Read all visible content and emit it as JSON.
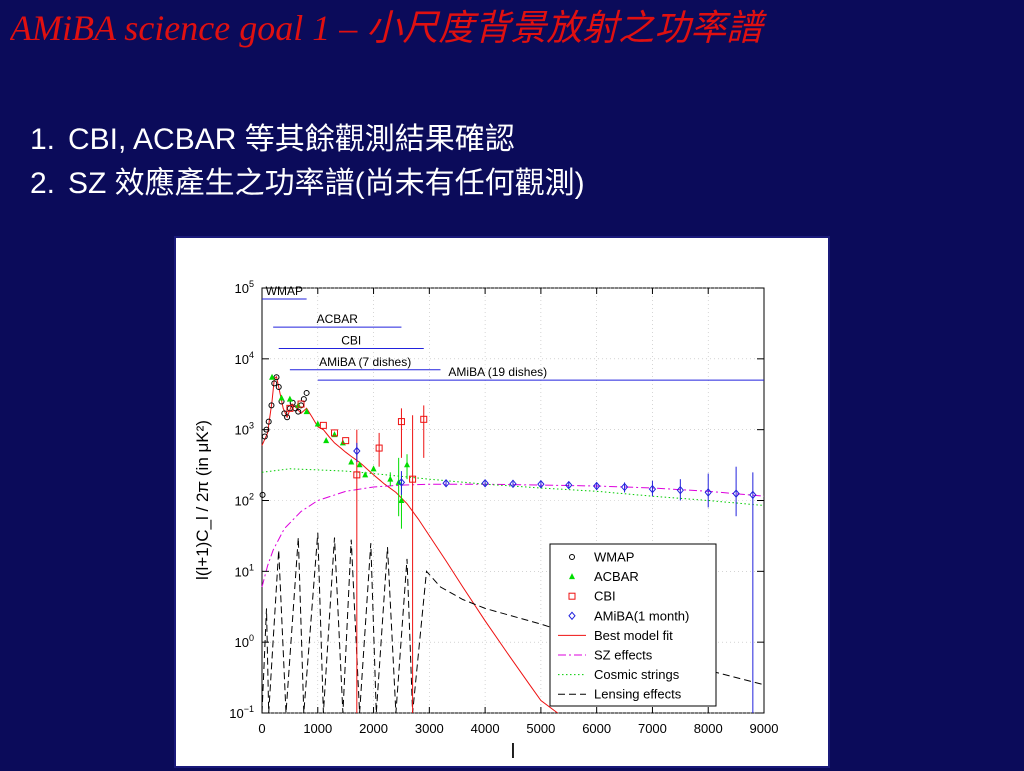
{
  "slide": {
    "title": "AMiBA science goal 1 – 小尺度背景放射之功率譜",
    "bullets": [
      {
        "num": "1.",
        "label": "CBI, ACBAR 等其餘觀測結果確認"
      },
      {
        "num": "2.",
        "label": "SZ 效應產生之功率譜(尚未有任何觀測)"
      }
    ]
  },
  "colors": {
    "background": "#0b0b5a",
    "title": "#e01010",
    "wmap": "#000000",
    "acbar": "#00dd00",
    "cbi": "#ee1111",
    "amiba": "#2222dd",
    "best_fit": "#ee1111",
    "sz": "#dd00dd",
    "strings": "#00cc00",
    "lensing": "#000000"
  },
  "chart_data": {
    "type": "line",
    "xlabel": "l",
    "ylabel": "l(l+1)C_l / 2π (in μK²)",
    "xlim": [
      0,
      9000
    ],
    "ylim": [
      0.1,
      100000
    ],
    "yscale": "log",
    "x_ticks": [
      "0",
      "1000",
      "2000",
      "3000",
      "4000",
      "5000",
      "6000",
      "7000",
      "8000",
      "9000"
    ],
    "y_ticks": [
      {
        "value": 0.1,
        "base": "10",
        "exp": "−1"
      },
      {
        "value": 1,
        "base": "10",
        "exp": "0"
      },
      {
        "value": 10,
        "base": "10",
        "exp": "1"
      },
      {
        "value": 100,
        "base": "10",
        "exp": "2"
      },
      {
        "value": 1000,
        "base": "10",
        "exp": "3"
      },
      {
        "value": 10000,
        "base": "10",
        "exp": "4"
      },
      {
        "value": 100000,
        "base": "10",
        "exp": "5"
      }
    ],
    "legend_position": "lower-right",
    "coverage": [
      {
        "name": "WMAP",
        "l_min": 0,
        "l_max": 800,
        "y": 70000
      },
      {
        "name": "ACBAR",
        "l_min": 200,
        "l_max": 2500,
        "y": 28000
      },
      {
        "name": "CBI",
        "l_min": 300,
        "l_max": 2900,
        "y": 14000
      },
      {
        "name": "AMiBA (7 dishes)",
        "l_min": 500,
        "l_max": 3200,
        "y": 7000
      },
      {
        "name": "AMiBA (19 dishes)",
        "l_min": 1000,
        "l_max": 9000,
        "y": 5000
      }
    ],
    "legend": [
      {
        "key": "wmap",
        "label": "WMAP",
        "style": "circle"
      },
      {
        "key": "acbar",
        "label": "ACBAR",
        "style": "triangle"
      },
      {
        "key": "cbi",
        "label": "CBI",
        "style": "square"
      },
      {
        "key": "amiba",
        "label": "AMiBA(1 month)",
        "style": "diamond"
      },
      {
        "key": "best_fit",
        "label": "Best model fit",
        "style": "solid"
      },
      {
        "key": "sz",
        "label": "SZ effects",
        "style": "dashdot"
      },
      {
        "key": "strings",
        "label": "Cosmic strings",
        "style": "dotted"
      },
      {
        "key": "lensing",
        "label": "Lensing effects",
        "style": "dashed"
      }
    ],
    "series": [
      {
        "name": "WMAP",
        "key": "wmap",
        "marker": "circle",
        "points": [
          [
            10,
            120
          ],
          [
            50,
            800
          ],
          [
            80,
            1000
          ],
          [
            120,
            1300
          ],
          [
            170,
            2200
          ],
          [
            220,
            4500
          ],
          [
            260,
            5500
          ],
          [
            300,
            4000
          ],
          [
            350,
            2500
          ],
          [
            400,
            1700
          ],
          [
            450,
            1500
          ],
          [
            500,
            2000
          ],
          [
            550,
            2400
          ],
          [
            600,
            2000
          ],
          [
            650,
            1800
          ],
          [
            700,
            2200
          ],
          [
            750,
            2700
          ],
          [
            800,
            3300
          ]
        ]
      },
      {
        "name": "ACBAR",
        "key": "acbar",
        "marker": "triangle",
        "points": [
          [
            180,
            5500
          ],
          [
            350,
            2800
          ],
          [
            500,
            2700
          ],
          [
            650,
            2200
          ],
          [
            800,
            1800
          ],
          [
            1000,
            1200
          ],
          [
            1150,
            700
          ],
          [
            1300,
            850
          ],
          [
            1450,
            650
          ],
          [
            1600,
            350
          ],
          [
            1750,
            320
          ],
          [
            1850,
            230
          ],
          [
            2000,
            280
          ],
          [
            2300,
            200
          ],
          [
            2450,
            180
          ],
          [
            2500,
            100
          ],
          [
            2600,
            320
          ]
        ],
        "errors": [
          [
            2300,
            160,
            250
          ],
          [
            2450,
            60,
            400
          ],
          [
            2500,
            40,
            220
          ],
          [
            2600,
            200,
            450
          ]
        ]
      },
      {
        "name": "CBI",
        "key": "cbi",
        "marker": "square",
        "points": [
          [
            500,
            2000
          ],
          [
            700,
            2300
          ],
          [
            1100,
            1150
          ],
          [
            1300,
            900
          ],
          [
            1500,
            700
          ],
          [
            1700,
            230
          ],
          [
            2100,
            550
          ],
          [
            2500,
            1300
          ],
          [
            2700,
            200
          ],
          [
            2900,
            1400
          ]
        ],
        "errors": [
          [
            1700,
            0.1,
            1000
          ],
          [
            2100,
            300,
            900
          ],
          [
            2500,
            400,
            2000
          ],
          [
            2700,
            0.1,
            1600
          ],
          [
            2900,
            400,
            2200
          ]
        ]
      },
      {
        "name": "AMiBA(1 month)",
        "key": "amiba",
        "marker": "diamond",
        "points": [
          [
            1700,
            500
          ],
          [
            2500,
            180
          ],
          [
            3300,
            175
          ],
          [
            4000,
            175
          ],
          [
            4500,
            172
          ],
          [
            5000,
            170
          ],
          [
            5500,
            165
          ],
          [
            6000,
            160
          ],
          [
            6500,
            155
          ],
          [
            7000,
            145
          ],
          [
            7500,
            140
          ],
          [
            8000,
            130
          ],
          [
            8500,
            125
          ],
          [
            8800,
            120
          ]
        ],
        "errors": [
          [
            1700,
            350,
            650
          ],
          [
            2500,
            120,
            260
          ],
          [
            3300,
            160,
            190
          ],
          [
            4000,
            160,
            190
          ],
          [
            4500,
            160,
            185
          ],
          [
            5000,
            155,
            185
          ],
          [
            5500,
            150,
            180
          ],
          [
            6000,
            140,
            180
          ],
          [
            6500,
            130,
            180
          ],
          [
            7000,
            115,
            190
          ],
          [
            7500,
            100,
            200
          ],
          [
            8000,
            80,
            240
          ],
          [
            8500,
            60,
            300
          ],
          [
            8800,
            0.1,
            250
          ]
        ]
      },
      {
        "name": "Best model fit",
        "key": "best_fit",
        "line": "solid",
        "points": [
          [
            0,
            600
          ],
          [
            100,
            900
          ],
          [
            180,
            2500
          ],
          [
            220,
            5200
          ],
          [
            260,
            5600
          ],
          [
            300,
            4000
          ],
          [
            380,
            2000
          ],
          [
            450,
            1500
          ],
          [
            540,
            2300
          ],
          [
            620,
            2000
          ],
          [
            700,
            1700
          ],
          [
            800,
            2000
          ],
          [
            900,
            1500
          ],
          [
            1000,
            1100
          ],
          [
            1100,
            1000
          ],
          [
            1200,
            800
          ],
          [
            1300,
            650
          ],
          [
            1400,
            560
          ],
          [
            1500,
            480
          ],
          [
            1600,
            420
          ],
          [
            1700,
            370
          ],
          [
            1800,
            320
          ],
          [
            1900,
            270
          ],
          [
            2000,
            230
          ],
          [
            2200,
            170
          ],
          [
            2400,
            130
          ],
          [
            2600,
            90
          ],
          [
            2800,
            55
          ],
          [
            3000,
            32
          ],
          [
            3300,
            14
          ],
          [
            3600,
            6
          ],
          [
            4000,
            2
          ],
          [
            4400,
            0.7
          ],
          [
            4800,
            0.25
          ],
          [
            5000,
            0.15
          ],
          [
            5300,
            0.1
          ]
        ]
      },
      {
        "name": "SZ effects",
        "key": "sz",
        "line": "dashdot",
        "points": [
          [
            0,
            6
          ],
          [
            100,
            12
          ],
          [
            200,
            20
          ],
          [
            400,
            40
          ],
          [
            700,
            70
          ],
          [
            1000,
            100
          ],
          [
            1500,
            135
          ],
          [
            2000,
            155
          ],
          [
            2500,
            165
          ],
          [
            3000,
            170
          ],
          [
            4000,
            170
          ],
          [
            5000,
            165
          ],
          [
            6000,
            160
          ],
          [
            7000,
            150
          ],
          [
            8000,
            135
          ],
          [
            9000,
            115
          ]
        ]
      },
      {
        "name": "Cosmic strings",
        "key": "strings",
        "line": "dotted",
        "points": [
          [
            0,
            250
          ],
          [
            500,
            280
          ],
          [
            1000,
            270
          ],
          [
            1500,
            260
          ],
          [
            2000,
            240
          ],
          [
            3000,
            200
          ],
          [
            4000,
            170
          ],
          [
            5000,
            150
          ],
          [
            6000,
            135
          ],
          [
            7000,
            115
          ],
          [
            8000,
            100
          ],
          [
            9000,
            85
          ]
        ]
      },
      {
        "name": "Lensing effects",
        "key": "lensing",
        "line": "dashed",
        "points": [
          [
            0,
            0.1
          ],
          [
            80,
            3
          ],
          [
            120,
            0.1
          ],
          [
            300,
            20
          ],
          [
            430,
            0.1
          ],
          [
            650,
            30
          ],
          [
            750,
            0.1
          ],
          [
            1000,
            35
          ],
          [
            1100,
            0.1
          ],
          [
            1300,
            30
          ],
          [
            1450,
            0.1
          ],
          [
            1600,
            28
          ],
          [
            1750,
            0.1
          ],
          [
            1950,
            25
          ],
          [
            2050,
            0.1
          ],
          [
            2250,
            22
          ],
          [
            2400,
            0.1
          ],
          [
            2600,
            15
          ],
          [
            2700,
            0.1
          ],
          [
            2950,
            10
          ],
          [
            3200,
            6
          ],
          [
            3600,
            4
          ],
          [
            4000,
            3
          ],
          [
            5000,
            1.8
          ],
          [
            6000,
            1
          ],
          [
            7000,
            0.6
          ],
          [
            8000,
            0.4
          ],
          [
            9000,
            0.25
          ]
        ]
      }
    ]
  }
}
